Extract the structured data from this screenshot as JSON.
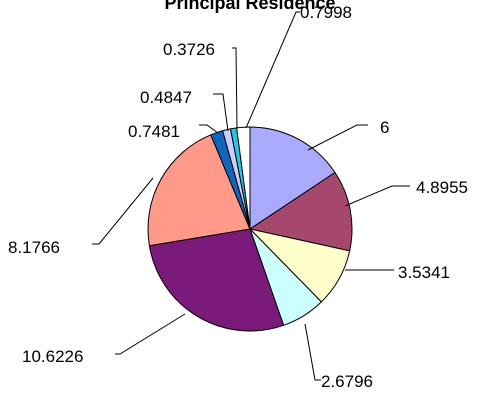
{
  "chart_data": {
    "type": "pie",
    "title": "Principal Residence",
    "values": [
      6,
      4.8955,
      3.5341,
      2.6796,
      10.6226,
      8.1766,
      0.7481,
      0.4847,
      0.3726,
      0.7998
    ],
    "labels": [
      "6",
      "4.8955",
      "3.5341",
      "2.6796",
      "10.6226",
      "8.1766",
      "0.7481",
      "0.4847",
      "0.3726",
      "0.7998"
    ],
    "colors": [
      "#AAAAFF",
      "#A6486E",
      "#FFFFCC",
      "#CCFFFF",
      "#7A1A7A",
      "#FF9A8A",
      "#1166BB",
      "#CCCCFF",
      "#26C5E5",
      "#FFFFFF"
    ],
    "start_angle": "12 o'clock",
    "direction": "clockwise",
    "legend": "none",
    "data_labels": "outside with leader lines"
  }
}
